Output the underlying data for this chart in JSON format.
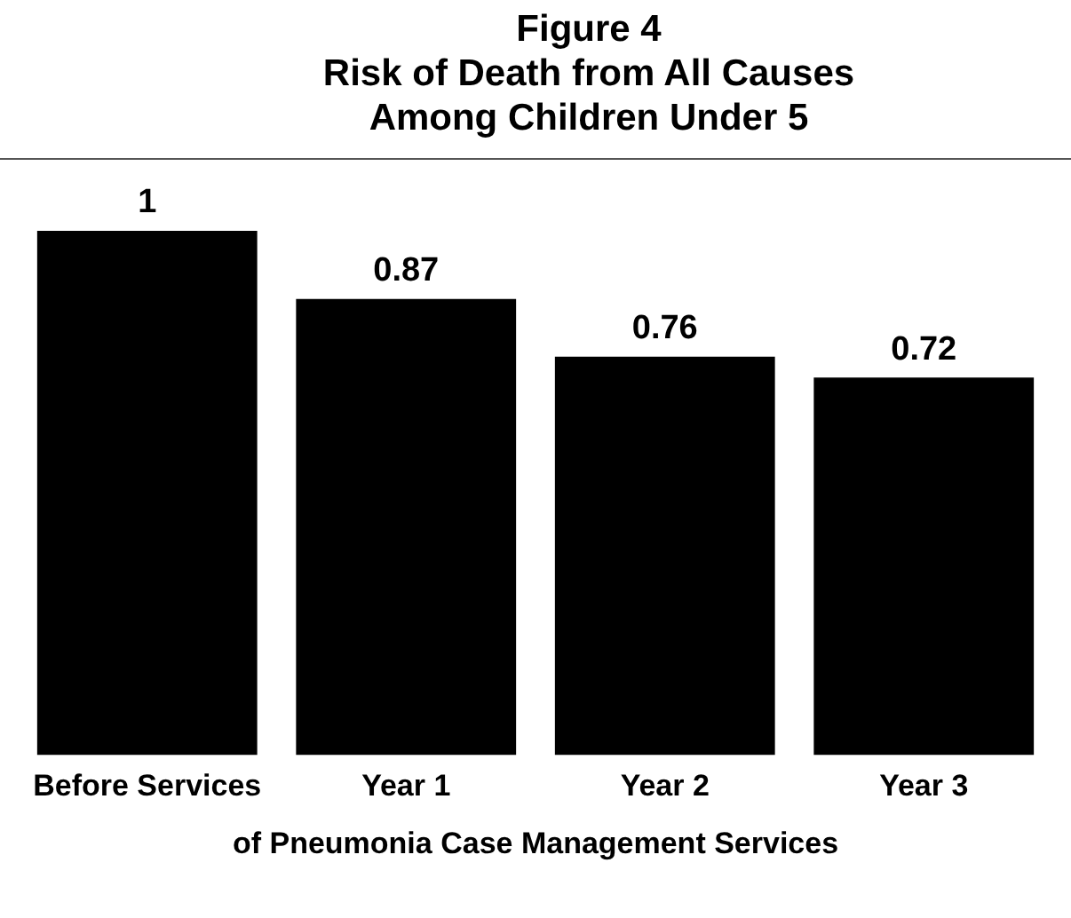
{
  "chart_data": {
    "type": "bar",
    "title": "Figure 4",
    "subtitle": "Risk of Death from All Causes Among Children Under 5",
    "xlabel": "of Pneumonia Case Management Services",
    "categories": [
      "Before Services",
      "Year 1",
      "Year 2",
      "Year 3"
    ],
    "values": [
      1,
      0.87,
      0.76,
      0.72
    ],
    "color": "#000000",
    "tick_labels": "x",
    "data_labels": true
  }
}
